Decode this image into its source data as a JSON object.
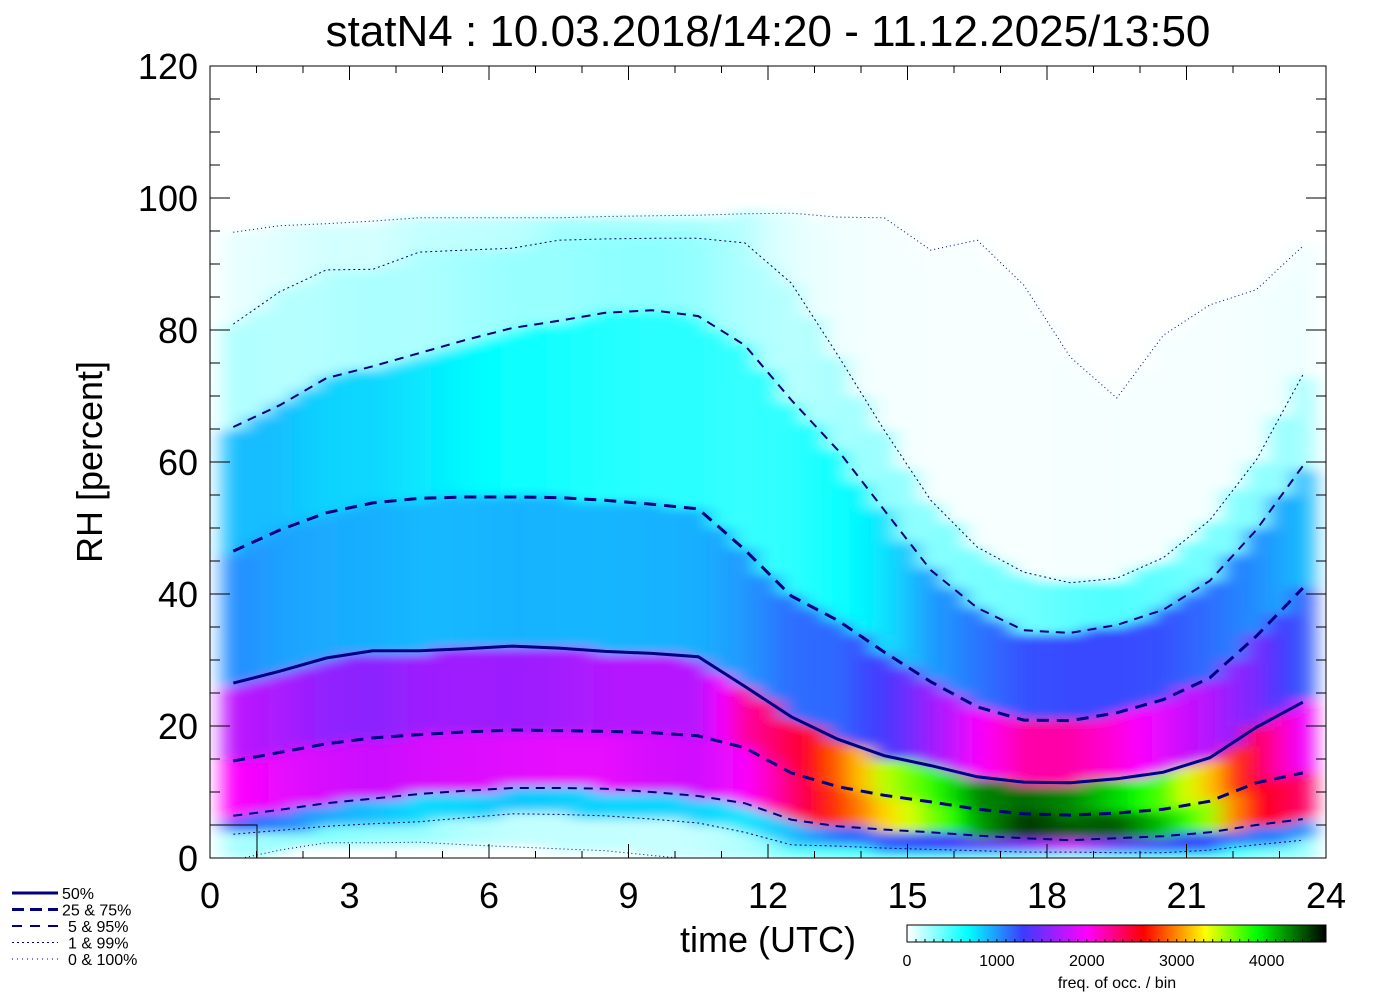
{
  "chart_data": {
    "type": "heatmap",
    "title": "statN4 : 10.03.2018/14:20 - 11.12.2025/13:50",
    "xlabel": "time (UTC)",
    "ylabel": "RH [percent]",
    "xlim": [
      0,
      24
    ],
    "ylim": [
      0,
      120
    ],
    "xticks": [
      "0",
      "3",
      "6",
      "9",
      "12",
      "15",
      "18",
      "21",
      "24"
    ],
    "yticks": [
      "0",
      "20",
      "40",
      "60",
      "80",
      "100",
      "120"
    ],
    "hours": [
      0.5,
      1.5,
      2.5,
      3.5,
      4.5,
      5.5,
      6.5,
      7.5,
      8.5,
      9.5,
      10.5,
      11.5,
      12.5,
      13.5,
      14.5,
      15.5,
      16.5,
      17.5,
      18.5,
      19.5,
      20.5,
      21.5,
      22.5,
      23.5
    ],
    "percentiles": {
      "p0": [
        -0.3,
        1.2,
        2.3,
        2.3,
        2.4,
        2.0,
        1.7,
        1.4,
        1.1,
        0.4,
        -0.3,
        -1,
        -1,
        -1,
        -1,
        -1,
        -1,
        -1,
        -1,
        -1,
        -1,
        -1,
        -1,
        -1
      ],
      "p1": [
        3.6,
        4.2,
        4.8,
        5.2,
        5.5,
        6.1,
        6.7,
        6.6,
        6.4,
        5.9,
        5.3,
        3.9,
        2.0,
        1.8,
        1.5,
        1.3,
        1.1,
        0.9,
        0.9,
        0.8,
        0.8,
        1.2,
        2.0,
        2.7
      ],
      "p5": [
        6.4,
        7.3,
        8.3,
        9.0,
        9.7,
        10.2,
        10.6,
        10.6,
        10.5,
        10.0,
        9.4,
        8.3,
        5.8,
        4.8,
        4.3,
        3.9,
        3.4,
        3.0,
        2.7,
        3.0,
        3.3,
        3.9,
        5.0,
        5.9
      ],
      "p25": [
        14.7,
        16.0,
        17.3,
        18.2,
        18.7,
        19.1,
        19.4,
        19.3,
        19.2,
        19.0,
        18.5,
        16.7,
        12.9,
        10.8,
        9.5,
        8.5,
        7.4,
        6.7,
        6.5,
        6.8,
        7.4,
        8.6,
        11.4,
        12.9
      ],
      "p50": [
        26.5,
        28.3,
        30.3,
        31.4,
        31.4,
        31.7,
        32.1,
        31.8,
        31.3,
        31.0,
        30.5,
        26.0,
        21.4,
        18.0,
        15.5,
        14.0,
        12.3,
        11.5,
        11.4,
        12.0,
        13.0,
        15.2,
        19.8,
        23.6
      ],
      "p75": [
        46.5,
        49.7,
        52.3,
        53.8,
        54.5,
        54.7,
        54.7,
        54.6,
        54.2,
        53.6,
        52.9,
        46.7,
        39.7,
        36.0,
        31.2,
        26.7,
        22.9,
        20.9,
        20.8,
        22.0,
        24.0,
        27.3,
        33.6,
        40.9
      ],
      "p95": [
        65.3,
        68.6,
        72.7,
        74.5,
        76.5,
        78.5,
        80.3,
        81.4,
        82.6,
        83.0,
        82.1,
        77.7,
        69.4,
        61.8,
        52.7,
        43.6,
        37.9,
        34.5,
        34.1,
        35.3,
        37.6,
        42.0,
        49.7,
        59.4
      ],
      "p99": [
        80.9,
        85.8,
        89.1,
        89.2,
        91.8,
        92.1,
        92.4,
        93.6,
        93.8,
        93.9,
        93.9,
        93.2,
        87.1,
        76.2,
        64.8,
        54.2,
        47.1,
        43.3,
        41.7,
        42.4,
        45.5,
        51.2,
        60.3,
        73.2
      ],
      "p100": [
        94.8,
        95.8,
        96.1,
        96.5,
        97.0,
        97.0,
        97.0,
        97.0,
        97.2,
        97.3,
        97.4,
        97.6,
        97.7,
        97.1,
        97.0,
        92.1,
        93.6,
        86.8,
        75.9,
        69.7,
        79.2,
        83.8,
        86.1,
        92.7
      ]
    },
    "legend": [
      {
        "label": "50%",
        "style": "solid"
      },
      {
        "label": "25 &  75%",
        "style": "dashed-thick"
      },
      {
        "label": "5 &  95%",
        "style": "dashed"
      },
      {
        "label": "1 &  99%",
        "style": "dotted"
      },
      {
        "label": "0 & 100%",
        "style": "dotted-thin"
      }
    ],
    "line_color": "#000080",
    "colorbar": {
      "label": "freq. of occ. / bin",
      "ticks": [
        "0",
        "1000",
        "2000",
        "3000",
        "4000"
      ],
      "range": [
        0,
        4660
      ],
      "stops": [
        [
          0,
          "#ffffff"
        ],
        [
          680,
          "#00ffff"
        ],
        [
          1290,
          "#3c3cff"
        ],
        [
          2000,
          "#ff00ff"
        ],
        [
          2630,
          "#ff0000"
        ],
        [
          3320,
          "#ffff00"
        ],
        [
          3890,
          "#00ff00"
        ],
        [
          4660,
          "#000000"
        ]
      ]
    }
  }
}
